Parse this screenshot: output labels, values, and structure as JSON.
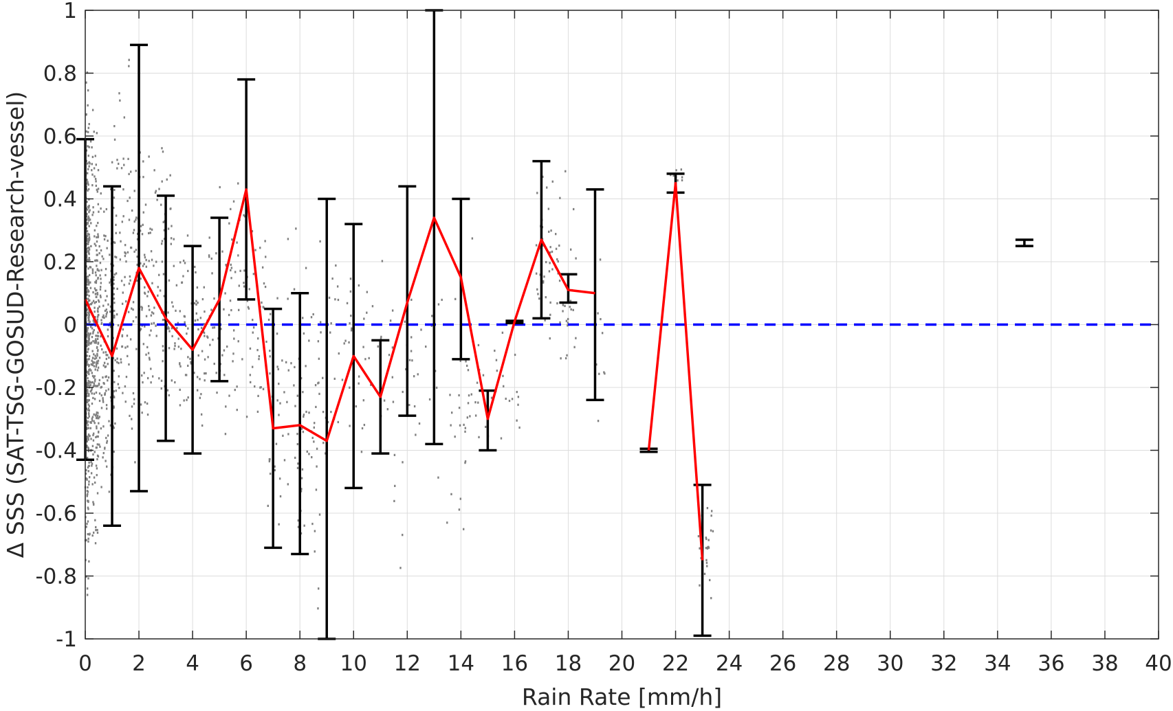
{
  "chart_data": {
    "type": "scatter",
    "xlabel": "Rain Rate [mm/h]",
    "ylabel": "Δ SSS (SAT-TSG-GOSUD-Research-vessel)",
    "xlim": [
      0,
      40
    ],
    "ylim": [
      -1,
      1
    ],
    "x_ticks": [
      "0",
      "2",
      "4",
      "6",
      "8",
      "10",
      "12",
      "14",
      "16",
      "18",
      "20",
      "22",
      "24",
      "26",
      "28",
      "30",
      "32",
      "34",
      "36",
      "38",
      "40"
    ],
    "y_ticks": [
      "-1",
      "-0.8",
      "-0.6",
      "-0.4",
      "-0.2",
      "0",
      "0.2",
      "0.4",
      "0.6",
      "0.8",
      "1"
    ],
    "x_tick_values": [
      0,
      2,
      4,
      6,
      8,
      10,
      12,
      14,
      16,
      18,
      20,
      22,
      24,
      26,
      28,
      30,
      32,
      34,
      36,
      38,
      40
    ],
    "y_tick_values": [
      -1,
      -0.8,
      -0.6,
      -0.4,
      -0.2,
      0,
      0.2,
      0.4,
      0.6,
      0.8,
      1
    ],
    "grid": true,
    "colors": {
      "scatter": "#808080",
      "mean_line": "#ff0000",
      "error_bars": "#000000",
      "zero_line": "#0000ff"
    },
    "zero_reference": 0,
    "mean_series": {
      "x": [
        0,
        1,
        2,
        3,
        4,
        5,
        6,
        7,
        8,
        9,
        10,
        11,
        12,
        13,
        14,
        15,
        16,
        17,
        18,
        19,
        null,
        21,
        22,
        23
      ],
      "y": [
        0.08,
        -0.1,
        0.18,
        0.02,
        -0.08,
        0.08,
        0.43,
        -0.33,
        -0.32,
        -0.37,
        -0.1,
        -0.23,
        0.07,
        0.34,
        0.15,
        -0.3,
        0.01,
        0.27,
        0.11,
        0.1,
        null,
        -0.4,
        0.45,
        -0.75
      ]
    },
    "error_bars": [
      {
        "x": 0,
        "low": -0.43,
        "high": 0.59
      },
      {
        "x": 1,
        "low": -0.64,
        "high": 0.44
      },
      {
        "x": 2,
        "low": -0.53,
        "high": 0.89
      },
      {
        "x": 3,
        "low": -0.37,
        "high": 0.41
      },
      {
        "x": 4,
        "low": -0.41,
        "high": 0.25
      },
      {
        "x": 5,
        "low": -0.18,
        "high": 0.34
      },
      {
        "x": 6,
        "low": 0.08,
        "high": 0.78
      },
      {
        "x": 7,
        "low": -0.71,
        "high": 0.05
      },
      {
        "x": 8,
        "low": -0.73,
        "high": 0.1
      },
      {
        "x": 9,
        "low": -1.0,
        "high": 0.4
      },
      {
        "x": 10,
        "low": -0.52,
        "high": 0.32
      },
      {
        "x": 11,
        "low": -0.41,
        "high": -0.05
      },
      {
        "x": 12,
        "low": -0.29,
        "high": 0.44
      },
      {
        "x": 13,
        "low": -0.38,
        "high": 1.0
      },
      {
        "x": 14,
        "low": -0.11,
        "high": 0.4
      },
      {
        "x": 15,
        "low": -0.4,
        "high": -0.21
      },
      {
        "x": 16,
        "low": 0.005,
        "high": 0.012
      },
      {
        "x": 17,
        "low": 0.02,
        "high": 0.52
      },
      {
        "x": 18,
        "low": 0.07,
        "high": 0.16
      },
      {
        "x": 19,
        "low": -0.24,
        "high": 0.43
      },
      {
        "x": 21,
        "low": -0.405,
        "high": -0.395
      },
      {
        "x": 22,
        "low": 0.42,
        "high": 0.48
      },
      {
        "x": 23,
        "low": -0.99,
        "high": -0.51
      },
      {
        "x": 35,
        "low": 0.25,
        "high": 0.27
      }
    ],
    "scatter_clusters": [
      {
        "x_min": 0.0,
        "x_max": 0.15,
        "y_min": -1.0,
        "y_max": 1.0,
        "count": 320
      },
      {
        "x_min": 0.1,
        "x_max": 0.5,
        "y_min": -0.9,
        "y_max": 0.8,
        "count": 260
      },
      {
        "x_min": 0.4,
        "x_max": 1.1,
        "y_min": -0.8,
        "y_max": 0.6,
        "count": 200
      },
      {
        "x_min": 1.0,
        "x_max": 2.2,
        "y_min": -0.7,
        "y_max": 0.95,
        "count": 160
      },
      {
        "x_min": 2.2,
        "x_max": 3.3,
        "y_min": -0.45,
        "y_max": 0.7,
        "count": 110
      },
      {
        "x_min": 3.3,
        "x_max": 4.5,
        "y_min": -0.45,
        "y_max": 0.45,
        "count": 80
      },
      {
        "x_min": 4.5,
        "x_max": 6.8,
        "y_min": -0.55,
        "y_max": 0.6,
        "count": 110
      },
      {
        "x_min": 6.8,
        "x_max": 9.0,
        "y_min": -1.0,
        "y_max": 0.45,
        "count": 110
      },
      {
        "x_min": 9.0,
        "x_max": 11.5,
        "y_min": -0.6,
        "y_max": 0.45,
        "count": 60
      },
      {
        "x_min": 11.5,
        "x_max": 14.5,
        "y_min": -0.95,
        "y_max": 0.4,
        "count": 60
      },
      {
        "x_min": 14.5,
        "x_max": 16.2,
        "y_min": -0.42,
        "y_max": 0.02,
        "count": 30
      },
      {
        "x_min": 16.8,
        "x_max": 18.3,
        "y_min": -0.28,
        "y_max": 0.58,
        "count": 70
      },
      {
        "x_min": 19.0,
        "x_max": 19.4,
        "y_min": -0.44,
        "y_max": 0.5,
        "count": 10
      },
      {
        "x_min": 21.8,
        "x_max": 22.3,
        "y_min": 0.42,
        "y_max": 0.52,
        "count": 8
      },
      {
        "x_min": 22.8,
        "x_max": 23.4,
        "y_min": -0.98,
        "y_max": -0.46,
        "count": 25
      }
    ]
  }
}
